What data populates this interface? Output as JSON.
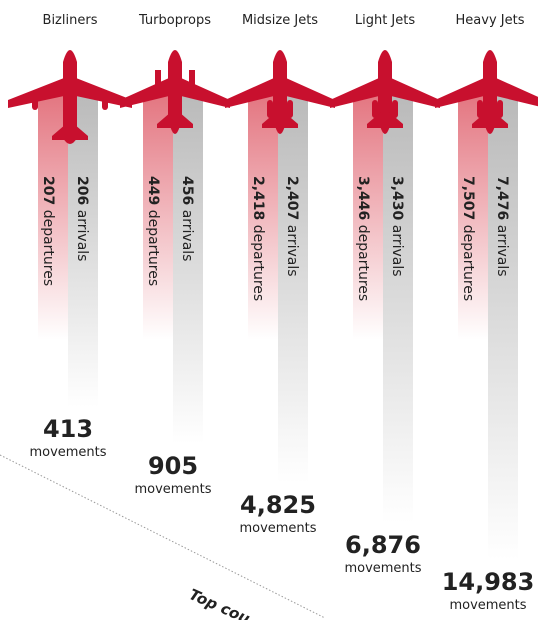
{
  "columns": [
    {
      "name": "Bizliners",
      "departures": "207",
      "arrivals": "206",
      "movements": "413"
    },
    {
      "name": "Turboprops",
      "departures": "449",
      "arrivals": "456",
      "movements": "905"
    },
    {
      "name": "Midsize Jets",
      "departures": "2,418",
      "arrivals": "2,407",
      "movements": "4,825"
    },
    {
      "name": "Light Jets",
      "departures": "3,446",
      "arrivals": "3,430",
      "movements": "6,876"
    },
    {
      "name": "Heavy Jets",
      "departures": "7,507",
      "arrivals": "7,476",
      "movements": "14,983"
    }
  ],
  "labels": {
    "departures": "departures",
    "arrivals": "arrivals",
    "movements": "movements"
  },
  "footer": "Top cou"
}
